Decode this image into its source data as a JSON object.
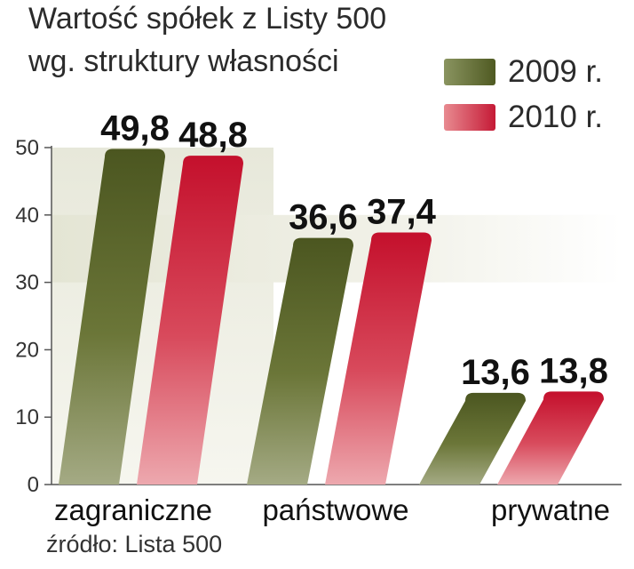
{
  "chart_data": {
    "type": "bar",
    "title_lines": [
      "Wartość spółek z Listy 500",
      "wg. struktury własności"
    ],
    "categories": [
      "zagraniczne",
      "państwowe",
      "prywatne"
    ],
    "series": [
      {
        "name": "2009 r.",
        "values": [
          49.8,
          36.6,
          13.6
        ],
        "labels": [
          "49,8",
          "36,6",
          "13,6"
        ],
        "color": "#5e6a2c"
      },
      {
        "name": "2010 r.",
        "values": [
          48.8,
          37.4,
          13.8
        ],
        "labels": [
          "48,8",
          "37,4",
          "13,8"
        ],
        "color": "#cc1e3a"
      }
    ],
    "yticks": [
      0,
      10,
      20,
      30,
      40,
      50
    ],
    "ylim": [
      0,
      50
    ],
    "grid": false,
    "legend": "top-right",
    "source": "źródło: Lista 500"
  }
}
